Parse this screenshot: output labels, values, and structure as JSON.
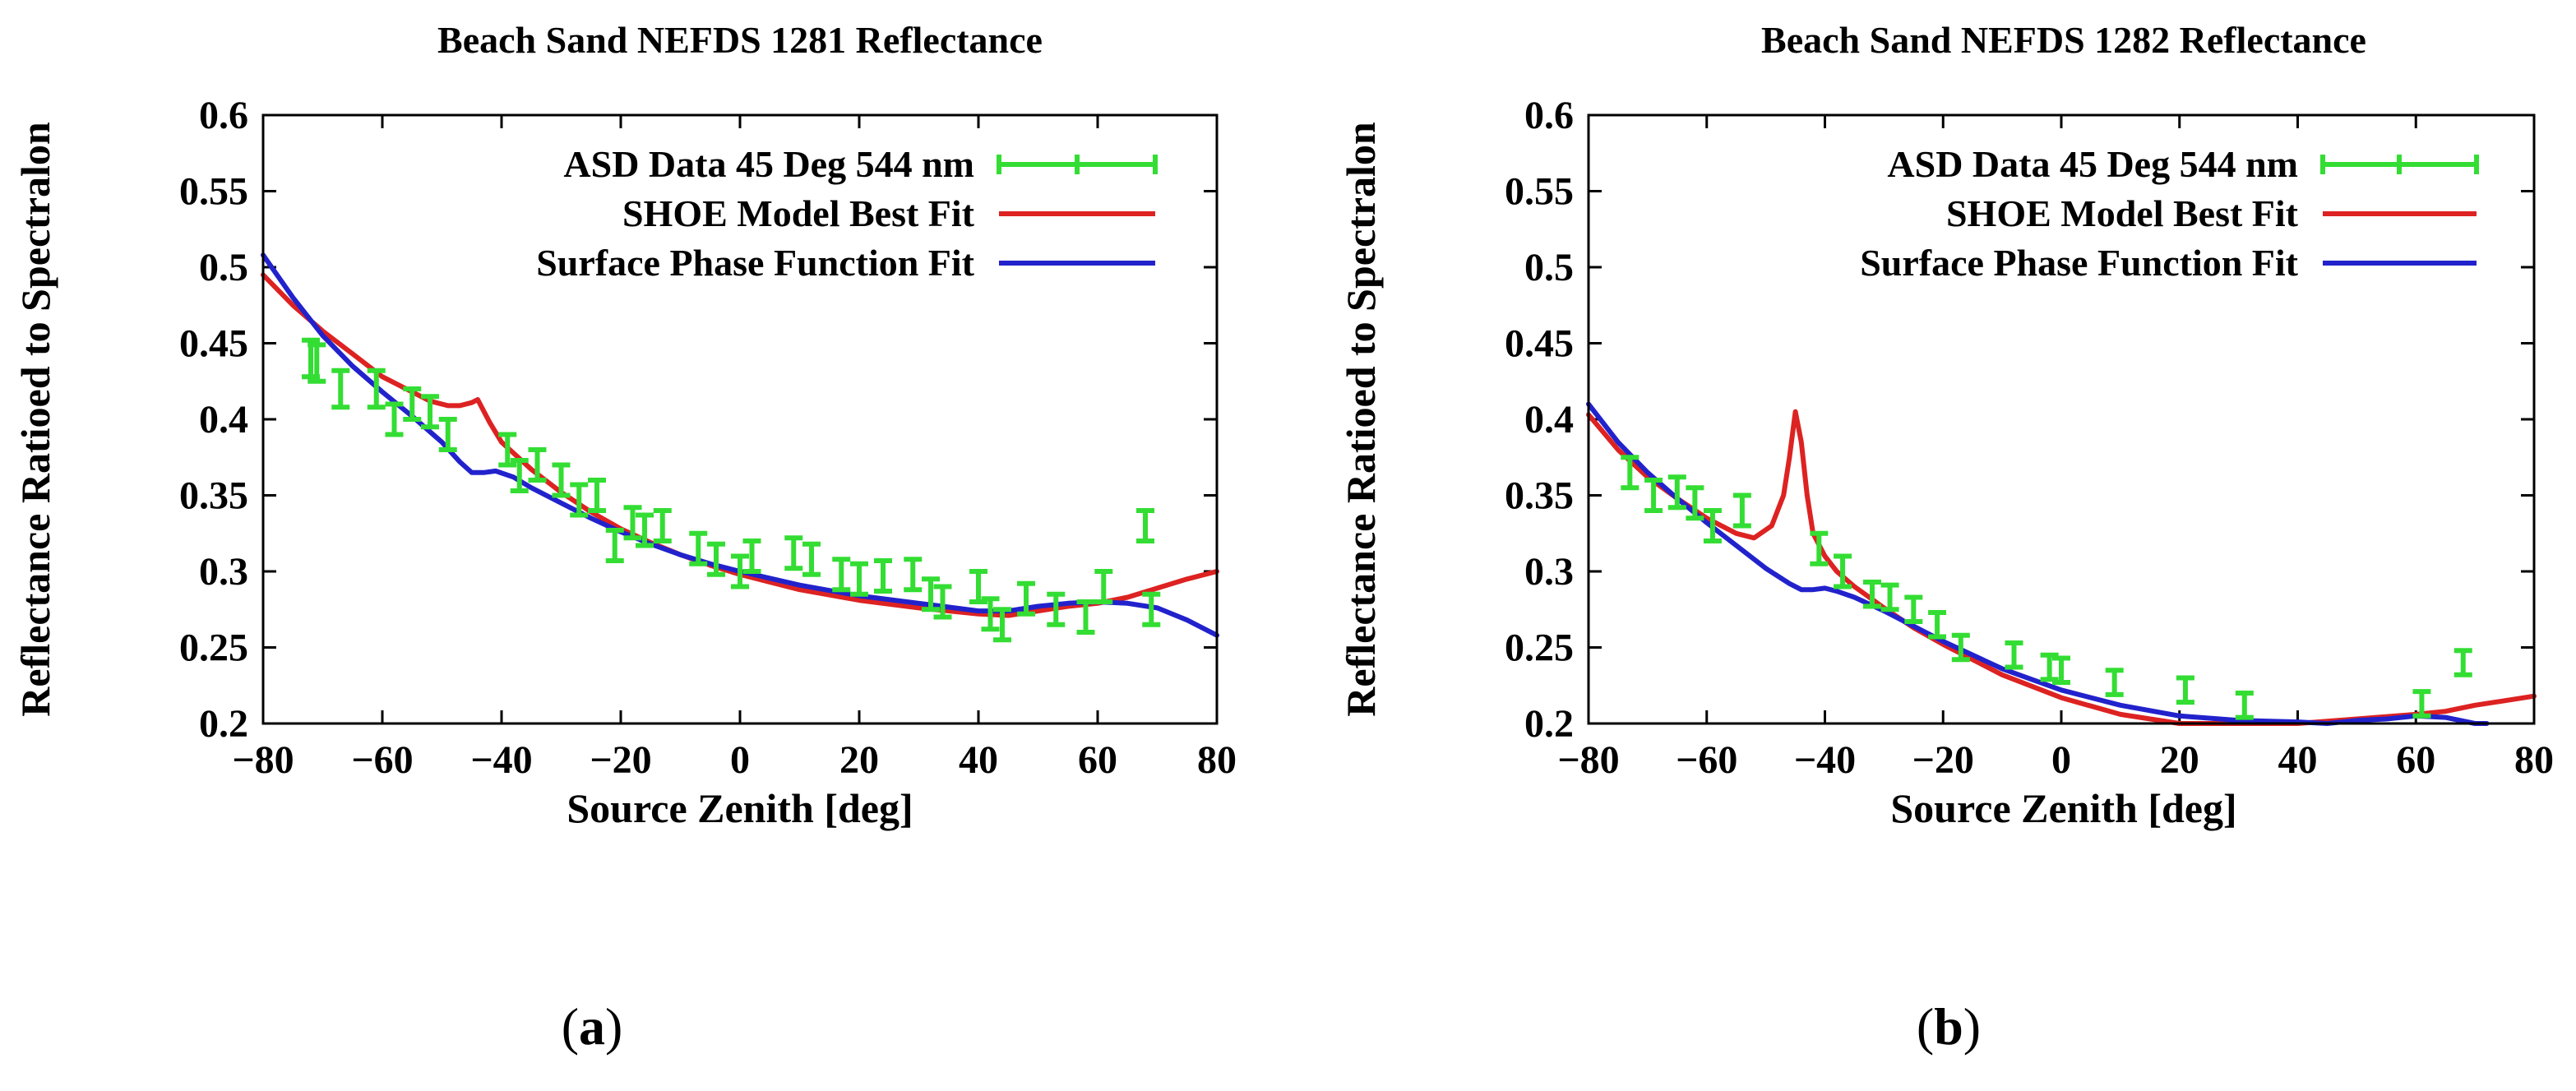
{
  "chart_data": [
    {
      "type": "line",
      "panel": "(a)",
      "panel_letter": "a",
      "title": "Beach Sand NEFDS 1281 Reflectance",
      "xlabel": "Source Zenith [deg]",
      "ylabel": "Reflectance Ratioed to Spectralon",
      "xlim": [
        -80,
        80
      ],
      "ylim": [
        0.2,
        0.6
      ],
      "xticks": [
        "-80",
        "-60",
        "-40",
        "-20",
        "0",
        "20",
        "40",
        "60",
        "80"
      ],
      "yticks": [
        "0.2",
        "0.25",
        "0.3",
        "0.35",
        "0.4",
        "0.45",
        "0.5",
        "0.55",
        "0.6"
      ],
      "legend_position": "top-right",
      "series": [
        {
          "name": "ASD Data 45 Deg 544 nm",
          "kind": "errorbar",
          "color": "#33dd33",
          "x": [
            -72,
            -71,
            -67,
            -61,
            -58,
            -55,
            -52,
            -49,
            -39,
            -37,
            -34,
            -30,
            -27,
            -24,
            -21,
            -18,
            -16,
            -13,
            -7,
            -4,
            0,
            2,
            9,
            12,
            17,
            20,
            24,
            29,
            32,
            34,
            40,
            42,
            44,
            48,
            53,
            58,
            61,
            68,
            69
          ],
          "y": [
            0.44,
            0.437,
            0.42,
            0.42,
            0.4,
            0.41,
            0.405,
            0.39,
            0.38,
            0.363,
            0.37,
            0.36,
            0.347,
            0.35,
            0.317,
            0.332,
            0.327,
            0.33,
            0.315,
            0.308,
            0.3,
            0.31,
            0.312,
            0.308,
            0.298,
            0.295,
            0.297,
            0.298,
            0.285,
            0.28,
            0.29,
            0.272,
            0.265,
            0.282,
            0.275,
            0.27,
            0.29,
            0.33,
            0.275
          ],
          "err": [
            0.012,
            0.012,
            0.012,
            0.012,
            0.01,
            0.01,
            0.01,
            0.01,
            0.01,
            0.01,
            0.01,
            0.01,
            0.01,
            0.01,
            0.01,
            0.01,
            0.01,
            0.01,
            0.01,
            0.01,
            0.01,
            0.01,
            0.01,
            0.01,
            0.01,
            0.01,
            0.01,
            0.01,
            0.01,
            0.01,
            0.01,
            0.01,
            0.01,
            0.01,
            0.01,
            0.01,
            0.01,
            0.01,
            0.01
          ]
        },
        {
          "name": "SHOE Model Best Fit",
          "kind": "line",
          "color": "#dd2222",
          "x": [
            -80,
            -75,
            -70,
            -65,
            -60,
            -55,
            -52,
            -49,
            -47,
            -45,
            -44,
            -42,
            -40,
            -35,
            -30,
            -25,
            -20,
            -15,
            -10,
            -5,
            0,
            10,
            20,
            30,
            40,
            45,
            50,
            55,
            60,
            65,
            70,
            75,
            80
          ],
          "y": [
            0.495,
            0.475,
            0.458,
            0.443,
            0.428,
            0.418,
            0.412,
            0.409,
            0.409,
            0.411,
            0.413,
            0.398,
            0.385,
            0.367,
            0.352,
            0.339,
            0.328,
            0.319,
            0.311,
            0.304,
            0.298,
            0.288,
            0.281,
            0.276,
            0.272,
            0.271,
            0.274,
            0.277,
            0.279,
            0.283,
            0.289,
            0.295,
            0.3
          ]
        },
        {
          "name": "Surface Phase Function Fit",
          "kind": "line",
          "color": "#2222cc",
          "x": [
            -80,
            -75,
            -70,
            -65,
            -60,
            -55,
            -50,
            -47,
            -45,
            -43,
            -41,
            -38,
            -35,
            -30,
            -25,
            -20,
            -15,
            -10,
            -5,
            0,
            10,
            20,
            30,
            40,
            45,
            50,
            55,
            60,
            65,
            70,
            75,
            80
          ],
          "y": [
            0.508,
            0.48,
            0.455,
            0.435,
            0.418,
            0.402,
            0.385,
            0.372,
            0.365,
            0.365,
            0.366,
            0.362,
            0.355,
            0.345,
            0.335,
            0.326,
            0.318,
            0.311,
            0.305,
            0.3,
            0.291,
            0.284,
            0.279,
            0.274,
            0.274,
            0.277,
            0.279,
            0.28,
            0.279,
            0.276,
            0.268,
            0.258
          ]
        }
      ]
    },
    {
      "type": "line",
      "panel": "(b)",
      "panel_letter": "b",
      "title": "Beach Sand NEFDS 1282 Reflectance",
      "xlabel": "Source Zenith [deg]",
      "ylabel": "Reflectance Ratioed to Spectralon",
      "xlim": [
        -80,
        80
      ],
      "ylim": [
        0.2,
        0.6
      ],
      "xticks": [
        "-80",
        "-60",
        "-40",
        "-20",
        "0",
        "20",
        "40",
        "60",
        "80"
      ],
      "yticks": [
        "0.2",
        "0.25",
        "0.3",
        "0.35",
        "0.4",
        "0.45",
        "0.5",
        "0.55",
        "0.6"
      ],
      "legend_position": "top-right",
      "series": [
        {
          "name": "ASD Data 45 Deg 544 nm",
          "kind": "errorbar",
          "color": "#33dd33",
          "x": [
            -73,
            -69,
            -65,
            -62,
            -59,
            -54,
            -41,
            -37,
            -32,
            -29,
            -25,
            -21,
            -17,
            -8,
            -2,
            0,
            9,
            21,
            31,
            61,
            68
          ],
          "y": [
            0.365,
            0.35,
            0.352,
            0.345,
            0.33,
            0.34,
            0.315,
            0.3,
            0.285,
            0.283,
            0.275,
            0.265,
            0.25,
            0.245,
            0.237,
            0.235,
            0.227,
            0.222,
            0.212,
            0.213,
            0.24
          ],
          "err": [
            0.01,
            0.01,
            0.01,
            0.01,
            0.01,
            0.01,
            0.01,
            0.01,
            0.008,
            0.008,
            0.008,
            0.008,
            0.008,
            0.008,
            0.008,
            0.008,
            0.008,
            0.008,
            0.008,
            0.008,
            0.008
          ]
        },
        {
          "name": "SHOE Model Best Fit",
          "kind": "line",
          "color": "#dd2222",
          "x": [
            -80,
            -75,
            -70,
            -65,
            -60,
            -55,
            -52,
            -49,
            -47,
            -46,
            -45,
            -44,
            -43,
            -42,
            -40,
            -38,
            -35,
            -30,
            -25,
            -20,
            -10,
            0,
            10,
            20,
            30,
            40,
            50,
            60,
            65,
            70,
            75,
            80
          ],
          "y": [
            0.403,
            0.38,
            0.362,
            0.348,
            0.335,
            0.325,
            0.322,
            0.33,
            0.35,
            0.375,
            0.405,
            0.385,
            0.35,
            0.325,
            0.31,
            0.3,
            0.29,
            0.276,
            0.263,
            0.252,
            0.232,
            0.217,
            0.206,
            0.2,
            0.2,
            0.2,
            0.203,
            0.206,
            0.208,
            0.212,
            0.215,
            0.218
          ]
        },
        {
          "name": "Surface Phase Function Fit",
          "kind": "line",
          "color": "#2222cc",
          "x": [
            -80,
            -75,
            -70,
            -65,
            -60,
            -55,
            -50,
            -46,
            -44,
            -42,
            -40,
            -38,
            -35,
            -30,
            -25,
            -20,
            -10,
            0,
            10,
            20,
            30,
            40,
            45,
            50,
            55,
            60,
            65,
            70,
            72
          ],
          "y": [
            0.41,
            0.385,
            0.365,
            0.348,
            0.332,
            0.317,
            0.302,
            0.292,
            0.288,
            0.288,
            0.289,
            0.287,
            0.283,
            0.274,
            0.264,
            0.254,
            0.236,
            0.222,
            0.212,
            0.205,
            0.202,
            0.201,
            0.2,
            0.202,
            0.203,
            0.205,
            0.204,
            0.2,
            0.2
          ]
        }
      ]
    }
  ]
}
